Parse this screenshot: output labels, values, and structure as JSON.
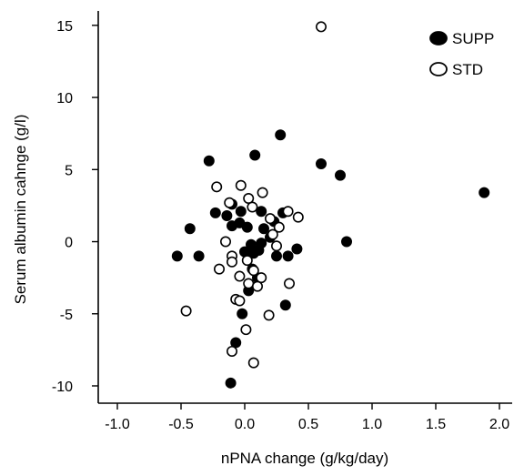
{
  "chart_data": {
    "type": "scatter",
    "title": "",
    "xlabel": "nPNA change (g/kg/day)",
    "ylabel": "Serum albumin cahnge (g/l)",
    "xlim": [
      -1.15,
      2.1
    ],
    "ylim": [
      -11.2,
      16.0
    ],
    "x_ticks": [
      -1.0,
      -0.5,
      0.0,
      0.5,
      1.0,
      1.5,
      2.0
    ],
    "x_tick_labels": [
      "-1.0",
      "-0.5",
      "0.0",
      "0.5",
      "1.0",
      "1.5",
      "2.0"
    ],
    "y_ticks": [
      15,
      10,
      5,
      0,
      -5,
      -10
    ],
    "y_tick_labels": [
      "15",
      "10",
      "5",
      "0",
      "-5",
      "-10"
    ],
    "grid": false,
    "legend_position": "top-right",
    "series": [
      {
        "name": "SUPP",
        "marker": "filled-circle",
        "color": "#000000",
        "points": [
          [
            0.28,
            7.4
          ],
          [
            0.08,
            6.0
          ],
          [
            -0.28,
            5.6
          ],
          [
            0.6,
            5.4
          ],
          [
            0.75,
            4.6
          ],
          [
            1.88,
            3.4
          ],
          [
            -0.1,
            2.6
          ],
          [
            0.3,
            2.0
          ],
          [
            0.13,
            2.1
          ],
          [
            -0.03,
            2.1
          ],
          [
            -0.23,
            2.0
          ],
          [
            -0.14,
            1.8
          ],
          [
            -0.1,
            1.1
          ],
          [
            -0.04,
            1.3
          ],
          [
            0.02,
            1.0
          ],
          [
            0.15,
            0.9
          ],
          [
            0.23,
            1.4
          ],
          [
            -0.43,
            0.9
          ],
          [
            0.2,
            0.3
          ],
          [
            0.13,
            -0.1
          ],
          [
            0.8,
            0.0
          ],
          [
            0.05,
            -0.2
          ],
          [
            0.11,
            -0.6
          ],
          [
            0.0,
            -0.7
          ],
          [
            0.07,
            -0.8
          ],
          [
            0.41,
            -0.5
          ],
          [
            -0.53,
            -1.0
          ],
          [
            -0.36,
            -1.0
          ],
          [
            0.25,
            -1.0
          ],
          [
            0.34,
            -1.0
          ],
          [
            0.06,
            -1.9
          ],
          [
            0.1,
            -2.5
          ],
          [
            0.03,
            -3.4
          ],
          [
            -0.02,
            -5.0
          ],
          [
            0.32,
            -4.4
          ],
          [
            -0.07,
            -7.0
          ],
          [
            -0.11,
            -9.8
          ]
        ]
      },
      {
        "name": "STD",
        "marker": "open-circle",
        "color": "#000000",
        "points": [
          [
            0.6,
            14.9
          ],
          [
            -0.03,
            3.9
          ],
          [
            -0.22,
            3.8
          ],
          [
            0.14,
            3.4
          ],
          [
            -0.12,
            2.7
          ],
          [
            0.03,
            3.0
          ],
          [
            0.06,
            2.4
          ],
          [
            0.34,
            2.1
          ],
          [
            0.42,
            1.7
          ],
          [
            0.2,
            1.6
          ],
          [
            0.27,
            1.0
          ],
          [
            0.22,
            0.5
          ],
          [
            -0.15,
            0.0
          ],
          [
            0.25,
            -0.3
          ],
          [
            -0.1,
            -1.0
          ],
          [
            -0.1,
            -1.4
          ],
          [
            0.02,
            -1.3
          ],
          [
            -0.2,
            -1.9
          ],
          [
            0.07,
            -2.0
          ],
          [
            -0.04,
            -2.4
          ],
          [
            0.13,
            -2.5
          ],
          [
            0.03,
            -2.9
          ],
          [
            0.1,
            -3.1
          ],
          [
            0.35,
            -2.9
          ],
          [
            -0.07,
            -4.0
          ],
          [
            -0.04,
            -4.1
          ],
          [
            0.19,
            -5.1
          ],
          [
            0.01,
            -6.1
          ],
          [
            -0.46,
            -4.8
          ],
          [
            -0.1,
            -7.6
          ],
          [
            0.07,
            -8.4
          ]
        ]
      }
    ]
  }
}
